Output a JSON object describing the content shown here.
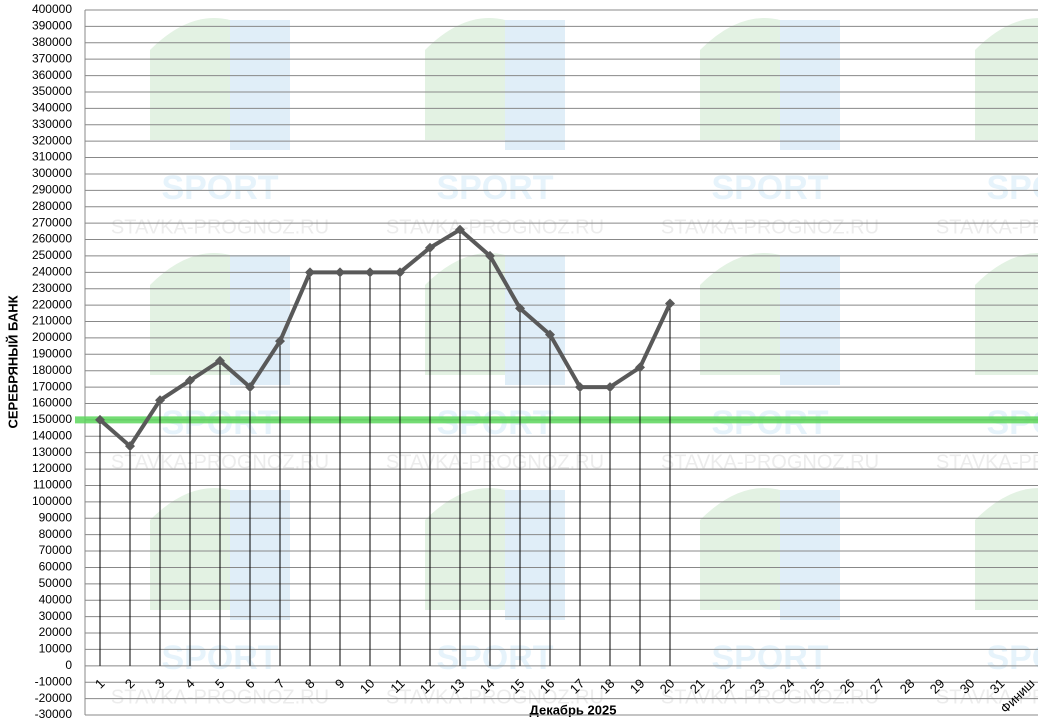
{
  "chart_data": {
    "type": "line",
    "x_label": "Декабрь 2025",
    "y_label": "СЕРЕБРЯНЫЙ БАНК",
    "watermark": [
      "SPORT",
      "STAVKA-PROGNOZ.RU"
    ],
    "categories": [
      "1",
      "2",
      "3",
      "4",
      "5",
      "6",
      "7",
      "8",
      "9",
      "10",
      "11",
      "12",
      "13",
      "14",
      "15",
      "16",
      "17",
      "18",
      "19",
      "20",
      "21",
      "22",
      "23",
      "24",
      "25",
      "26",
      "27",
      "28",
      "29",
      "30",
      "31",
      "Финиш"
    ],
    "series": [
      {
        "name": "Банк",
        "color": "#595959",
        "values": [
          150000,
          134000,
          162000,
          174000,
          186000,
          170000,
          198000,
          240000,
          240000,
          240000,
          240000,
          255000,
          266000,
          250000,
          218000,
          202000,
          170000,
          170000,
          182000,
          221000,
          null,
          null,
          null,
          null,
          null,
          null,
          null,
          null,
          null,
          null,
          null,
          null
        ]
      }
    ],
    "reference_line": {
      "value": 150000,
      "color": "#5cd65c"
    },
    "drop_lines": true,
    "ylim": [
      -30000,
      400000
    ],
    "yticks": [
      -30000,
      -20000,
      -10000,
      0,
      10000,
      20000,
      30000,
      40000,
      50000,
      60000,
      70000,
      80000,
      90000,
      100000,
      110000,
      120000,
      130000,
      140000,
      150000,
      160000,
      170000,
      180000,
      190000,
      200000,
      210000,
      220000,
      230000,
      240000,
      250000,
      260000,
      270000,
      280000,
      290000,
      300000,
      310000,
      320000,
      330000,
      340000,
      350000,
      360000,
      370000,
      380000,
      390000,
      400000
    ],
    "grid": true
  }
}
